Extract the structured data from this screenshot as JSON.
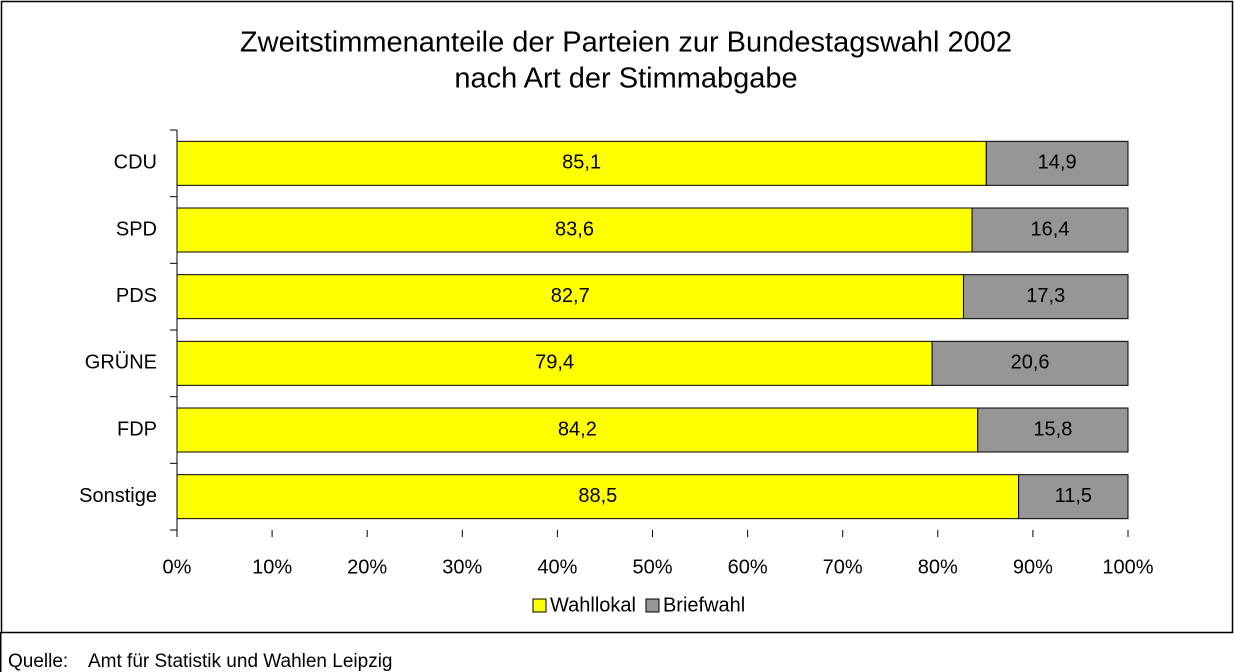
{
  "chart_data": {
    "type": "stacked-bar-horizontal",
    "title": "Zweitstimmenanteile der Parteien zur Bundestagswahl 2002",
    "subtitle": "nach Art der Stimmabgabe",
    "categories": [
      "CDU",
      "SPD",
      "PDS",
      "GRÜNE",
      "FDP",
      "Sonstige"
    ],
    "series": [
      {
        "name": "Wahllokal",
        "color": "#ffff00",
        "values": [
          85.1,
          83.6,
          82.7,
          79.4,
          84.2,
          88.5
        ],
        "value_labels": [
          "85,1",
          "83,6",
          "82,7",
          "79,4",
          "84,2",
          "88,5"
        ]
      },
      {
        "name": "Briefwahl",
        "color": "#969696",
        "values": [
          14.9,
          16.4,
          17.3,
          20.6,
          15.8,
          11.5
        ],
        "value_labels": [
          "14,9",
          "16,4",
          "17,3",
          "20,6",
          "15,8",
          "11,5"
        ]
      }
    ],
    "xlim": [
      0,
      100
    ],
    "xticks": [
      {
        "value": 0,
        "label": "0%"
      },
      {
        "value": 10,
        "label": "10%"
      },
      {
        "value": 20,
        "label": "20%"
      },
      {
        "value": 30,
        "label": "30%"
      },
      {
        "value": 40,
        "label": "40%"
      },
      {
        "value": 50,
        "label": "50%"
      },
      {
        "value": 60,
        "label": "60%"
      },
      {
        "value": 70,
        "label": "70%"
      },
      {
        "value": 80,
        "label": "80%"
      },
      {
        "value": 90,
        "label": "90%"
      },
      {
        "value": 100,
        "label": "100%"
      }
    ],
    "legend": "bottom"
  },
  "footer": {
    "label": "Quelle:",
    "text": "Amt für Statistik und Wahlen Leipzig"
  }
}
